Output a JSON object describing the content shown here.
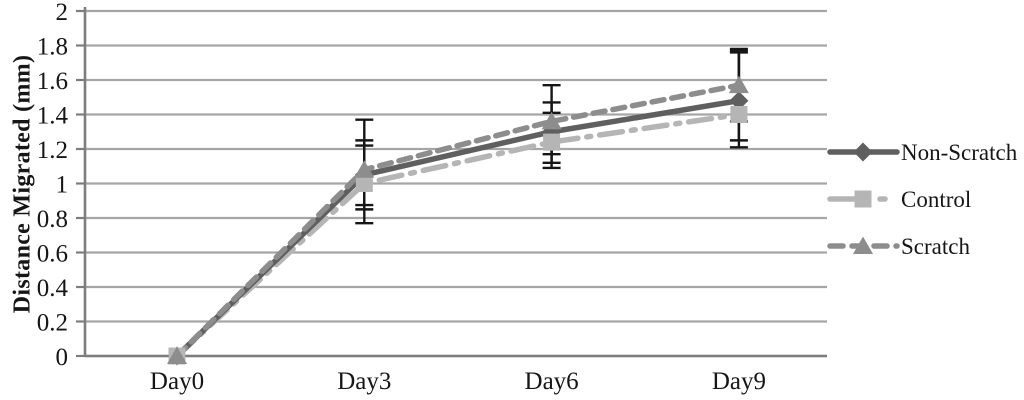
{
  "chart_data": {
    "type": "line",
    "title": "",
    "ylabel": "Distance Migrated (mm)",
    "xlabel": "",
    "categories": [
      "Day0",
      "Day3",
      "Day6",
      "Day9"
    ],
    "ylim": [
      0,
      2
    ],
    "ytick_step": 0.2,
    "ytick_labels": [
      "0",
      "0.2",
      "0.4",
      "0.6",
      "0.8",
      "1",
      "1.2",
      "1.4",
      "1.6",
      "1.8",
      "2"
    ],
    "grid": true,
    "legend_position": "right",
    "series": [
      {
        "name": "Non-Scratch",
        "marker": "diamond",
        "line_style": "solid",
        "color": "#5f5f5f",
        "values": [
          0,
          1.05,
          1.3,
          1.48
        ],
        "error_low": [
          null,
          0.85,
          1.12,
          1.25
        ],
        "error_high": [
          null,
          1.25,
          1.47,
          1.77
        ]
      },
      {
        "name": "Control",
        "marker": "square",
        "line_style": "long-dash-dot",
        "color": "#b5b5b5",
        "values": [
          0,
          1.0,
          1.24,
          1.4
        ],
        "error_low": [
          null,
          0.875,
          1.09,
          1.21
        ],
        "error_high": [
          null,
          1.22,
          1.41,
          1.76
        ]
      },
      {
        "name": "Scratch",
        "marker": "triangle",
        "line_style": "dash",
        "color": "#8d8d8d",
        "values": [
          0,
          1.08,
          1.36,
          1.57
        ],
        "error_low": [
          null,
          0.77,
          1.17,
          1.36
        ],
        "error_high": [
          null,
          1.37,
          1.57,
          1.78
        ]
      }
    ]
  },
  "colors": {
    "grid": "#a6a6a6",
    "axis": "#7d7d7d",
    "error_bar": "#161616",
    "text": "#161616",
    "background": "#ffffff"
  }
}
